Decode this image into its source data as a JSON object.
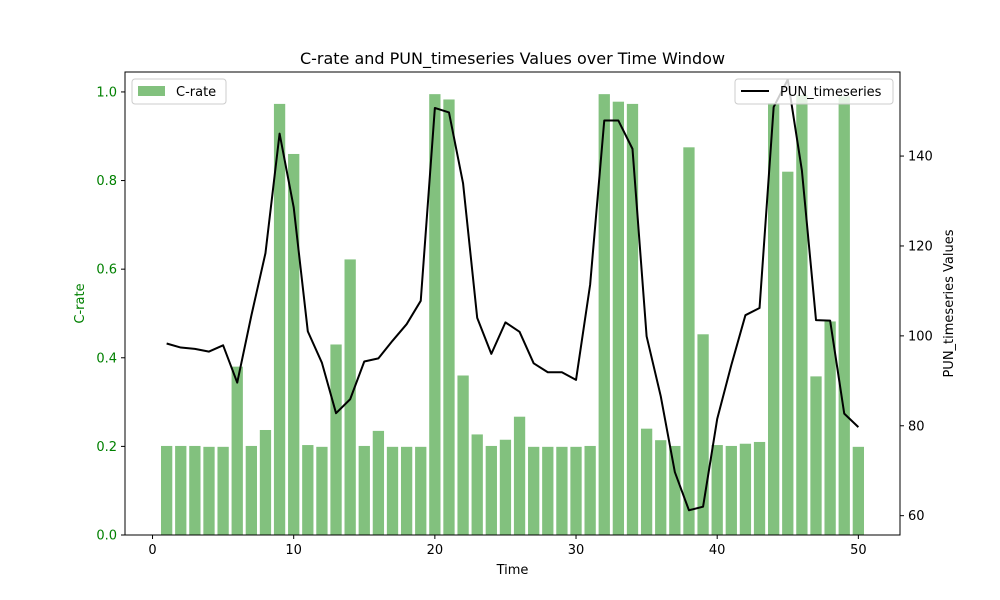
{
  "chart_data": {
    "type": "bar+line",
    "title": "C-rate and PUN_timeseries Values over Time Window",
    "xlabel": "Time",
    "ylabel_left": "C-rate",
    "ylabel_right": "PUN_timeseries Values",
    "xlim": [
      -1.95,
      52.95
    ],
    "ylim_left": [
      0,
      1.045
    ],
    "ylim_right": [
      55.7,
      158.7
    ],
    "x_ticks": [
      0,
      10,
      20,
      30,
      40,
      50
    ],
    "y_left_ticks": [
      "0.0",
      "0.2",
      "0.4",
      "0.6",
      "0.8",
      "1.0"
    ],
    "y_right_ticks": [
      60,
      80,
      100,
      120,
      140
    ],
    "grid": false,
    "legend_left": {
      "placement": "upper-left",
      "label": "C-rate"
    },
    "legend_right": {
      "placement": "upper-right",
      "label": "PUN_timeseries"
    },
    "colors": {
      "bar": "#82c17e",
      "line": "#000000",
      "left_axis": "#008000"
    },
    "x": [
      1,
      2,
      3,
      4,
      5,
      6,
      7,
      8,
      9,
      10,
      11,
      12,
      13,
      14,
      15,
      16,
      17,
      18,
      19,
      20,
      21,
      22,
      23,
      24,
      25,
      26,
      27,
      28,
      29,
      30,
      31,
      32,
      33,
      34,
      35,
      36,
      37,
      38,
      39,
      40,
      41,
      42,
      43,
      44,
      45,
      46,
      47,
      48,
      49,
      50
    ],
    "series": [
      {
        "name": "C-rate",
        "type": "bar",
        "axis": "left",
        "values": [
          0.201,
          0.201,
          0.201,
          0.199,
          0.199,
          0.38,
          0.201,
          0.237,
          0.973,
          0.86,
          0.203,
          0.199,
          0.43,
          0.622,
          0.201,
          0.235,
          0.199,
          0.199,
          0.199,
          0.995,
          0.983,
          0.36,
          0.227,
          0.201,
          0.215,
          0.267,
          0.199,
          0.199,
          0.199,
          0.199,
          0.201,
          0.995,
          0.978,
          0.973,
          0.24,
          0.214,
          0.201,
          0.875,
          0.453,
          0.203,
          0.201,
          0.206,
          0.21,
          0.975,
          0.82,
          0.993,
          0.358,
          0.482,
          0.99,
          0.199
        ]
      },
      {
        "name": "PUN_timeseries",
        "type": "line",
        "axis": "right",
        "values": [
          98.3,
          97.4,
          97.1,
          96.5,
          97.9,
          89.6,
          104.5,
          118.4,
          145,
          128.6,
          101,
          94,
          82.8,
          85.9,
          94.3,
          95,
          98.9,
          102.6,
          107.8,
          150.7,
          149.7,
          133.9,
          104,
          96,
          103,
          100.9,
          93.9,
          91.9,
          91.9,
          90.2,
          111.4,
          147.9,
          147.9,
          141.6,
          99.9,
          86.6,
          69.7,
          61.2,
          62,
          81.5,
          93.5,
          104.6,
          106.2,
          150.9,
          157,
          136.8,
          103.5,
          103.4,
          82.7,
          79.7
        ]
      }
    ]
  }
}
